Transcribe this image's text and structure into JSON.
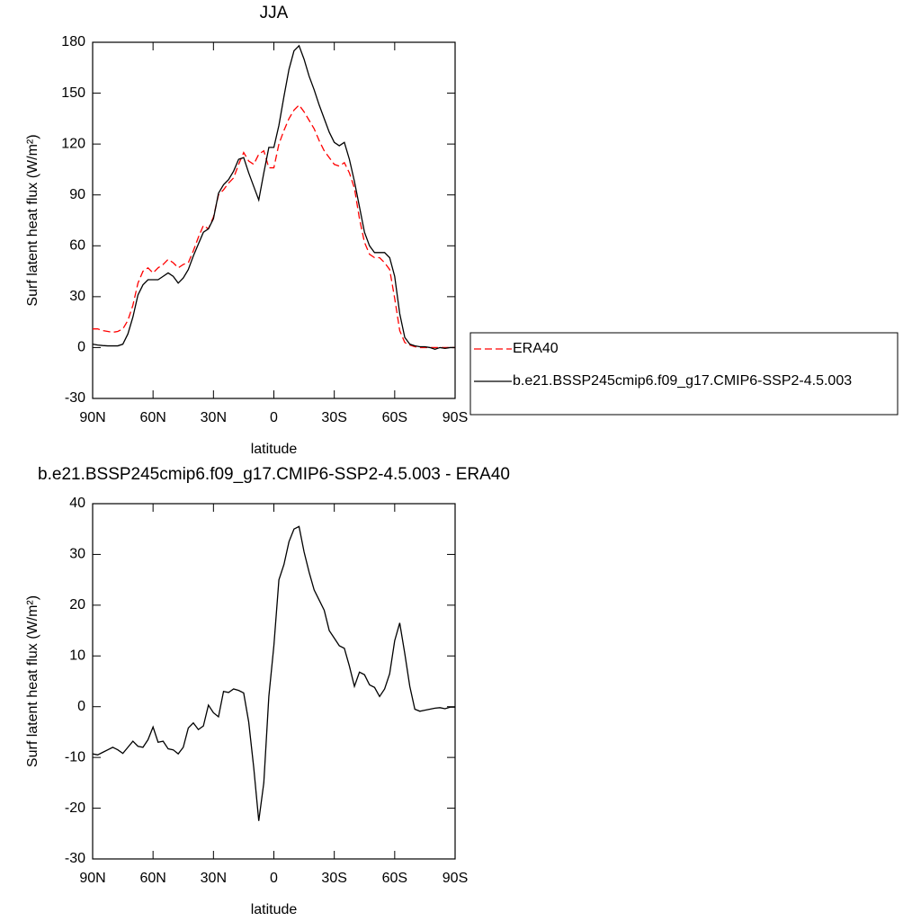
{
  "chart_data": [
    {
      "type": "line",
      "title": "JJA",
      "xlabel": "latitude",
      "ylabel": "Surf latent heat flux (W/m²)",
      "x": [
        90,
        87.5,
        85,
        82.5,
        80,
        77.5,
        75,
        72.5,
        70,
        67.5,
        65,
        62.5,
        60,
        57.5,
        55,
        52.5,
        50,
        47.5,
        45,
        42.5,
        40,
        37.5,
        35,
        32.5,
        30,
        27.5,
        25,
        22.5,
        20,
        17.5,
        15,
        12.5,
        10,
        7.5,
        5,
        2.5,
        0,
        -2.5,
        -5,
        -7.5,
        -10,
        -12.5,
        -15,
        -17.5,
        -20,
        -22.5,
        -25,
        -27.5,
        -30,
        -32.5,
        -35,
        -37.5,
        -40,
        -42.5,
        -45,
        -47.5,
        -50,
        -52.5,
        -55,
        -57.5,
        -60,
        -62.5,
        -65,
        -67.5,
        -70,
        -72.5,
        -75,
        -77.5,
        -80,
        -82.5,
        -85,
        -87.5,
        -90
      ],
      "series": [
        {
          "name": "ERA40",
          "color": "#ff0000",
          "dashed": true,
          "values": [
            11,
            11,
            10,
            9.5,
            9,
            9.5,
            11,
            16,
            25,
            38,
            45,
            47,
            44,
            47,
            49,
            52,
            50,
            47,
            49,
            50,
            57,
            65,
            72,
            70,
            77,
            90,
            93,
            97,
            100,
            108,
            115,
            110,
            108,
            114,
            116,
            106,
            106,
            120,
            128,
            135,
            140,
            143,
            139,
            134,
            129,
            122,
            116,
            112,
            108,
            107,
            109,
            103,
            94,
            76,
            62,
            55,
            53,
            53,
            50,
            46,
            29,
            10,
            3,
            1.5,
            0.5,
            0,
            0,
            0,
            0,
            0,
            0,
            0,
            0
          ]
        },
        {
          "name": "b.e21.BSSP245cmip6.f09_g17.CMIP6-SSP2-4.5.003",
          "color": "#000000",
          "dashed": false,
          "values": [
            2,
            1.5,
            1.2,
            1,
            1,
            1,
            2,
            8,
            18,
            31,
            37,
            40,
            40,
            40,
            42,
            44,
            42,
            38,
            41,
            46,
            54,
            61,
            68,
            70,
            76,
            91,
            96,
            99,
            104,
            111,
            112,
            103,
            95,
            87,
            103,
            118,
            118,
            131,
            148,
            164,
            175,
            178,
            170,
            160,
            152,
            143,
            135,
            127,
            121,
            119,
            121,
            111,
            98,
            83,
            68,
            60,
            56,
            56,
            56,
            53,
            42,
            20,
            6,
            2,
            1,
            0.5,
            0.5,
            0,
            -1,
            0,
            -0.5,
            0,
            0
          ]
        }
      ],
      "xlim": [
        90,
        -90
      ],
      "xticks": [
        {
          "value": 90,
          "label": "90N"
        },
        {
          "value": 60,
          "label": "60N"
        },
        {
          "value": 30,
          "label": "30N"
        },
        0,
        {
          "value": -30,
          "label": "30S"
        },
        {
          "value": -60,
          "label": "60S"
        },
        {
          "value": -90,
          "label": "90S"
        }
      ],
      "ylim": [
        -30,
        180
      ],
      "yticks": [
        -30,
        0,
        30,
        60,
        90,
        120,
        150,
        180
      ],
      "legend": "right"
    },
    {
      "type": "line",
      "title": "b.e21.BSSP245cmip6.f09_g17.CMIP6-SSP2-4.5.003 - ERA40",
      "xlabel": "latitude",
      "ylabel": "Surf latent heat flux (W/m²)",
      "x": [
        90,
        87.5,
        85,
        82.5,
        80,
        77.5,
        75,
        72.5,
        70,
        67.5,
        65,
        62.5,
        60,
        57.5,
        55,
        52.5,
        50,
        47.5,
        45,
        42.5,
        40,
        37.5,
        35,
        32.5,
        30,
        27.5,
        25,
        22.5,
        20,
        17.5,
        15,
        12.5,
        10,
        7.5,
        5,
        2.5,
        0,
        -2.5,
        -5,
        -7.5,
        -10,
        -12.5,
        -15,
        -17.5,
        -20,
        -22.5,
        -25,
        -27.5,
        -30,
        -32.5,
        -35,
        -37.5,
        -40,
        -42.5,
        -45,
        -47.5,
        -50,
        -52.5,
        -55,
        -57.5,
        -60,
        -62.5,
        -65,
        -67.5,
        -70,
        -72.5,
        -75,
        -77.5,
        -80,
        -82.5,
        -85,
        -87.5,
        -90
      ],
      "values": [
        -9.3,
        -9.5,
        -9,
        -8.5,
        -8,
        -8.5,
        -9.2,
        -8,
        -6.8,
        -7.8,
        -8,
        -6.5,
        -4,
        -7,
        -6.8,
        -8.3,
        -8.5,
        -9.3,
        -8,
        -4.2,
        -3.2,
        -4.5,
        -3.8,
        0.3,
        -1.2,
        -2,
        3,
        2.8,
        3.5,
        3.2,
        2.7,
        -3,
        -12,
        -22.5,
        -15,
        2,
        12,
        25,
        28,
        32.5,
        35,
        35.5,
        30.5,
        26.5,
        23,
        21,
        19,
        15,
        13.5,
        12,
        11.5,
        8,
        4,
        6.8,
        6.3,
        4.3,
        3.8,
        2,
        3.5,
        6.5,
        13,
        16.5,
        10.5,
        4,
        -0.5,
        -0.9,
        -0.7,
        -0.5,
        -0.3,
        -0.2,
        -0.4,
        -0.1,
        -0.1
      ],
      "color": "#000000",
      "xlim": [
        90,
        -90
      ],
      "xticks": [
        {
          "value": 90,
          "label": "90N"
        },
        {
          "value": 60,
          "label": "60N"
        },
        {
          "value": 30,
          "label": "30N"
        },
        0,
        {
          "value": -30,
          "label": "30S"
        },
        {
          "value": -60,
          "label": "60S"
        },
        {
          "value": -90,
          "label": "90S"
        }
      ],
      "ylim": [
        -30,
        40
      ],
      "yticks": [
        -30,
        -20,
        -10,
        0,
        10,
        20,
        30,
        40
      ]
    }
  ]
}
